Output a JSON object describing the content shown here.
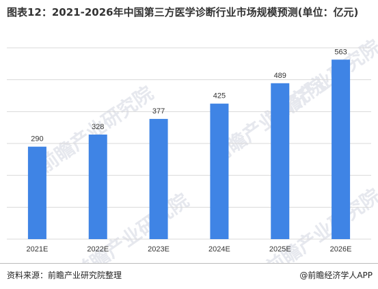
{
  "title": "图表12：2021-2026年中国第三方医学诊断行业市场规模预测(单位：亿元)",
  "watermark_text": "前瞻产业研究院",
  "footer": {
    "source": "资料来源：前瞻产业研究院整理",
    "credit": "@前瞻经济学人APP"
  },
  "colors": {
    "bar": "#3f84e5",
    "grid": "#d9d9d9",
    "label": "#333333"
  },
  "chart_data": {
    "type": "bar",
    "title": "图表12：2021-2026年中国第三方医学诊断行业市场规模预测(单位：亿元)",
    "unit": "亿元",
    "categories": [
      "2021E",
      "2022E",
      "2023E",
      "2024E",
      "2025E",
      "2026E"
    ],
    "values": [
      290,
      328,
      377,
      425,
      489,
      563
    ],
    "ylim": [
      0,
      600
    ],
    "grid": true,
    "legend": "none"
  }
}
